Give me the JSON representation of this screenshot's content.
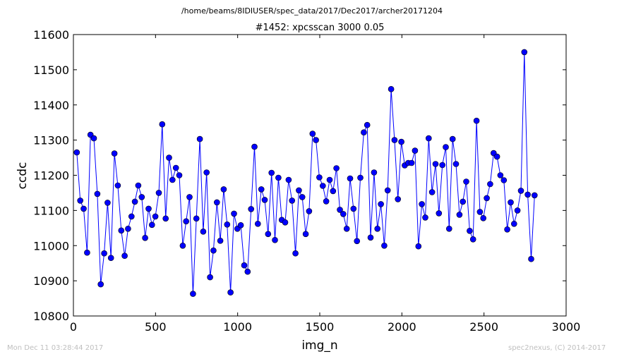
{
  "chart_data": {
    "type": "line",
    "suptitle": "/home/beams/8IDIUSER/spec_data/2017/Dec2017/archer20171204",
    "title": "#1452: xpcsscan 3000 0.05",
    "xlabel": "img_n",
    "ylabel": "ccdc",
    "xlim": [
      0,
      3000
    ],
    "ylim": [
      10800,
      11600
    ],
    "xticks": [
      "0",
      "500",
      "1000",
      "1500",
      "2000",
      "2500",
      "3000"
    ],
    "yticks": [
      "10800",
      "10900",
      "11000",
      "11100",
      "11200",
      "11300",
      "11400",
      "11500",
      "11600"
    ],
    "grid": false,
    "line_color": "#0000ff",
    "marker": "circle",
    "x_step": 20.8,
    "x_start": 20.8,
    "values": [
      11265,
      11128,
      11105,
      10980,
      11315,
      11305,
      11147,
      10890,
      10978,
      11122,
      10965,
      11262,
      11171,
      11043,
      10971,
      11048,
      11083,
      11125,
      11171,
      11138,
      11022,
      11105,
      11059,
      11083,
      11150,
      11345,
      11077,
      11250,
      11187,
      11221,
      11200,
      11000,
      11069,
      11138,
      10863,
      11077,
      11303,
      11040,
      11208,
      10910,
      10986,
      11123,
      11014,
      11160,
      11060,
      10867,
      11091,
      11048,
      11058,
      10944,
      10926,
      11104,
      11281,
      11062,
      11160,
      11130,
      11033,
      11207,
      11016,
      11193,
      11073,
      11066,
      11187,
      11128,
      10978,
      11157,
      11138,
      11033,
      11098,
      11318,
      11300,
      11194,
      11170,
      11126,
      11187,
      11155,
      11220,
      11102,
      11090,
      11048,
      11191,
      11105,
      11013,
      11193,
      11322,
      11343,
      11023,
      11208,
      11048,
      11118,
      11000,
      11157,
      11445,
      11300,
      11132,
      11295,
      11228,
      11235,
      11235,
      11270,
      10998,
      11118,
      11080,
      11305,
      11152,
      11232,
      11092,
      11229,
      11280,
      11048,
      11303,
      11232,
      11088,
      11125,
      11182,
      11042,
      11018,
      11355,
      11096,
      11078,
      11135,
      11175,
      11263,
      11253,
      11200,
      11186,
      11046,
      11123,
      11062,
      11100,
      11156,
      11550,
      11145,
      10962,
      11143
    ]
  },
  "footer": {
    "left": "Mon Dec 11 03:28:44 2017",
    "right": "spec2nexus, (C) 2014-2017"
  }
}
